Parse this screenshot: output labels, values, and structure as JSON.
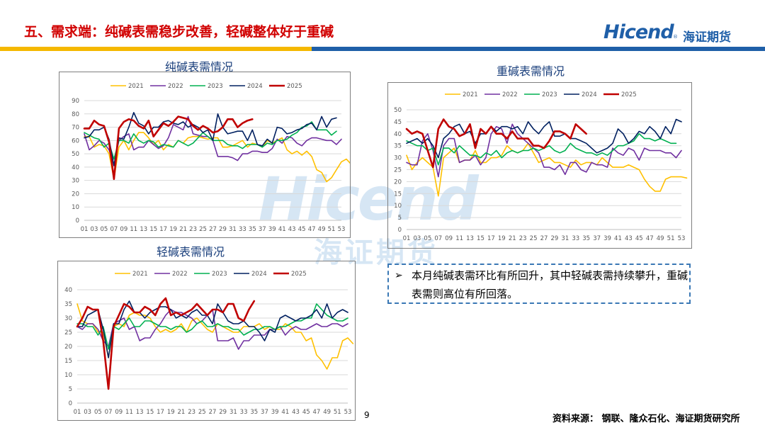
{
  "page": {
    "title": "五、需求端：纯碱表需稳步改善，轻碱整体好于重碱",
    "logo_en": "Hicend",
    "logo_cn": "海证期货",
    "logo_reg": "®",
    "watermark_en": "Hicend",
    "watermark_cn": "海证期货",
    "note_bullet": "➢",
    "note": "本月纯碱表需环比有所回升，其中轻碱表需持续攀升，重碱表需则高位有所回落。",
    "page_number": "9",
    "source": "资料来源：  钢联、隆众石化、海证期货研究所",
    "colors": {
      "title": "#d10000",
      "brand": "#1f5fa8",
      "chart_title": "#1a3f7c"
    }
  },
  "chart_data": [
    {
      "type": "line",
      "title": "纯碱表需情况",
      "ylim": [
        0,
        90
      ],
      "yticks": [
        0,
        10,
        20,
        30,
        40,
        50,
        60,
        70,
        80,
        90
      ],
      "xticks": [
        "01",
        "03",
        "05",
        "07",
        "09",
        "11",
        "13",
        "15",
        "17",
        "19",
        "21",
        "23",
        "25",
        "27",
        "29",
        "31",
        "33",
        "35",
        "37",
        "39",
        "41",
        "43",
        "45",
        "47",
        "49",
        "51",
        "53"
      ],
      "xrange": [
        1,
        53
      ],
      "legend": "top",
      "grid": true,
      "series": [
        {
          "name": "2021",
          "color": "#ffc000",
          "width": 1.6,
          "values": [
            63,
            63,
            55,
            57,
            56,
            50,
            31,
            55,
            60,
            53,
            60,
            66,
            66,
            62,
            57,
            60,
            53,
            57,
            55,
            60,
            58,
            62,
            63,
            63,
            62,
            61,
            62,
            62,
            55,
            55,
            56,
            58,
            60,
            55,
            58,
            57,
            55,
            60,
            58,
            60,
            62,
            53,
            50,
            52,
            49,
            52,
            48,
            38,
            36,
            29,
            32,
            38,
            44,
            46,
            42
          ]
        },
        {
          "name": "2022",
          "color": "#7030a0",
          "width": 1.6,
          "values": [
            65,
            53,
            56,
            60,
            58,
            53,
            42,
            60,
            63,
            65,
            53,
            55,
            55,
            60,
            57,
            54,
            56,
            62,
            72,
            70,
            68,
            78,
            65,
            64,
            63,
            63,
            60,
            48,
            48,
            48,
            47,
            45,
            50,
            50,
            52,
            52,
            51,
            51,
            54,
            61,
            58,
            63,
            62,
            58,
            56,
            60,
            62,
            62,
            61,
            60,
            60,
            57,
            61
          ]
        },
        {
          "name": "2023",
          "color": "#00b050",
          "width": 1.6,
          "values": [
            66,
            64,
            62,
            61,
            55,
            58,
            46,
            60,
            60,
            58,
            65,
            60,
            58,
            60,
            59,
            55,
            57,
            56,
            55,
            60,
            58,
            56,
            58,
            62,
            66,
            63,
            60,
            60,
            60,
            57,
            56,
            56,
            54,
            57,
            57,
            57,
            55,
            58,
            57,
            60,
            60,
            61,
            64,
            66,
            70,
            71,
            74,
            68,
            68,
            68,
            64,
            67
          ]
        },
        {
          "name": "2024",
          "color": "#002060",
          "width": 1.6,
          "values": [
            62,
            63,
            68,
            68,
            70,
            61,
            41,
            62,
            61,
            70,
            81,
            73,
            71,
            65,
            70,
            70,
            74,
            75,
            73,
            72,
            74,
            70,
            72,
            70,
            66,
            68,
            60,
            80,
            70,
            65,
            66,
            67,
            67,
            60,
            68,
            57,
            56,
            61,
            58,
            70,
            69,
            65,
            66,
            68,
            69,
            72,
            73,
            68,
            78,
            70,
            76,
            77
          ]
        },
        {
          "name": "2025",
          "color": "#c00000",
          "width": 2.6,
          "values": [
            69,
            69,
            75,
            72,
            71,
            59,
            31,
            69,
            74,
            76,
            75,
            71,
            69,
            75,
            63,
            68,
            73,
            71,
            74,
            78,
            77,
            76,
            71,
            68,
            71,
            69,
            66,
            67,
            70,
            76,
            76,
            70,
            73,
            75,
            76
          ]
        }
      ]
    },
    {
      "type": "line",
      "title": "重碱表需情况",
      "ylim": [
        0,
        50
      ],
      "yticks": [
        0,
        5,
        10,
        15,
        20,
        25,
        30,
        35,
        40,
        45,
        50
      ],
      "xticks": [
        "01",
        "03",
        "05",
        "07",
        "09",
        "11",
        "13",
        "15",
        "17",
        "19",
        "21",
        "23",
        "25",
        "27",
        "29",
        "31",
        "33",
        "35",
        "37",
        "39",
        "41",
        "43",
        "45",
        "47",
        "49",
        "51",
        "53"
      ],
      "xrange": [
        1,
        53
      ],
      "legend": "top",
      "grid": true,
      "series": [
        {
          "name": "2021",
          "color": "#ffc000",
          "width": 1.6,
          "values": [
            31,
            25,
            28,
            30,
            28,
            26,
            14,
            30,
            32,
            34,
            28,
            29,
            29,
            33,
            28,
            28,
            30,
            30,
            31,
            35,
            33,
            32,
            33,
            36,
            32,
            28,
            29,
            30,
            28,
            28,
            27,
            26,
            29,
            27,
            28,
            28,
            27,
            30,
            28,
            26,
            26,
            26,
            27,
            26,
            25,
            21,
            18,
            16,
            16,
            21,
            22,
            22,
            22,
            21.5
          ]
        },
        {
          "name": "2022",
          "color": "#7030a0",
          "width": 1.6,
          "values": [
            28,
            27,
            27,
            37,
            40,
            33,
            22,
            35,
            38,
            38,
            28,
            29,
            29,
            31,
            27,
            30,
            40,
            43,
            42,
            36,
            44,
            40,
            38,
            36,
            34,
            32,
            26,
            26,
            25,
            27,
            23,
            28,
            28,
            25,
            24,
            28,
            27,
            27,
            26,
            34,
            32,
            31,
            34,
            33,
            29,
            34,
            33,
            33,
            33,
            32,
            32,
            30,
            33
          ]
        },
        {
          "name": "2023",
          "color": "#00b050",
          "width": 1.6,
          "values": [
            37,
            36,
            35,
            35,
            33,
            34,
            27,
            34,
            34,
            32,
            35,
            33,
            31,
            31,
            30,
            32,
            31,
            33,
            30,
            32,
            33,
            32,
            33,
            33,
            34,
            33,
            34,
            35,
            33,
            32,
            33,
            36,
            34,
            33,
            32,
            32,
            31,
            32,
            31,
            33,
            35,
            35,
            36,
            37,
            40,
            38,
            38,
            37,
            38,
            37,
            36,
            36
          ]
        },
        {
          "name": "2024",
          "color": "#002060",
          "width": 1.6,
          "values": [
            36,
            37,
            38,
            36,
            38,
            35,
            30,
            38,
            40,
            43,
            44,
            40,
            41,
            36,
            40,
            40,
            43,
            41,
            43,
            43,
            42,
            43,
            40,
            45,
            42,
            40,
            43,
            45,
            39,
            39,
            40,
            38,
            38,
            37,
            36,
            34,
            32,
            33,
            34,
            36,
            42,
            40,
            36,
            38,
            41,
            40,
            43,
            41,
            38,
            43,
            40,
            46,
            45
          ]
        },
        {
          "name": "2025",
          "color": "#c00000",
          "width": 2.6,
          "values": [
            42,
            40,
            41,
            40,
            33,
            26,
            42,
            46,
            43,
            42,
            39,
            40,
            44,
            34,
            42,
            40,
            43,
            40,
            40,
            38,
            41,
            38,
            38,
            38,
            35,
            35,
            34,
            37,
            41,
            41,
            40,
            38,
            44,
            42,
            40
          ]
        }
      ]
    },
    {
      "type": "line",
      "title": "轻碱表需情况",
      "ylim": [
        0,
        40
      ],
      "yticks": [
        0,
        5,
        10,
        15,
        20,
        25,
        30,
        35,
        40
      ],
      "xticks": [
        "01",
        "03",
        "05",
        "07",
        "09",
        "11",
        "13",
        "15",
        "17",
        "19",
        "21",
        "23",
        "25",
        "27",
        "29",
        "31",
        "33",
        "35",
        "37",
        "39",
        "41",
        "43",
        "45",
        "47",
        "49",
        "51",
        "53"
      ],
      "xrange": [
        1,
        53
      ],
      "legend": "top",
      "grid": true,
      "series": [
        {
          "name": "2021",
          "color": "#ffc000",
          "width": 1.6,
          "values": [
            35,
            29,
            28,
            28,
            25,
            25,
            16,
            27,
            28,
            27,
            31,
            32,
            31,
            31,
            30,
            27,
            25,
            26,
            25,
            26,
            28,
            25,
            29,
            30,
            28,
            26,
            25,
            28,
            27,
            26,
            25,
            25,
            27,
            27,
            27,
            28,
            26,
            27,
            26,
            26,
            28,
            27,
            25,
            25,
            22,
            23,
            17,
            15,
            12,
            16,
            16,
            22,
            23,
            21
          ]
        },
        {
          "name": "2022",
          "color": "#7030a0",
          "width": 1.6,
          "values": [
            27,
            26,
            28,
            28,
            26,
            22,
            20,
            28,
            29,
            30,
            26,
            27,
            22,
            23,
            23,
            26,
            28,
            31,
            33,
            32,
            32,
            31,
            30,
            28,
            29,
            31,
            33,
            22,
            22,
            22,
            23,
            19,
            22,
            22,
            24,
            24,
            24,
            26,
            26,
            27,
            24,
            26,
            27,
            26,
            26,
            27,
            28,
            27,
            27,
            28,
            28,
            27,
            28
          ]
        },
        {
          "name": "2023",
          "color": "#00b050",
          "width": 1.6,
          "values": [
            28,
            28,
            27,
            27,
            24,
            27,
            19,
            27,
            26,
            28,
            30,
            27,
            27,
            29,
            29,
            28,
            27,
            27,
            26,
            27,
            27,
            25,
            26,
            28,
            29,
            27,
            27,
            28,
            27,
            27,
            26,
            26,
            24,
            25,
            26,
            26,
            27,
            27,
            26,
            27,
            27,
            28,
            29,
            29,
            30,
            30,
            35,
            33,
            31,
            30,
            29,
            29,
            30
          ]
        },
        {
          "name": "2024",
          "color": "#002060",
          "width": 1.6,
          "values": [
            27,
            27,
            31,
            32,
            33,
            26,
            16,
            28,
            28,
            33,
            36,
            32,
            32,
            30,
            32,
            33,
            34,
            34,
            33,
            30,
            31,
            30,
            32,
            33,
            31,
            31,
            28,
            35,
            32,
            29,
            28,
            28,
            29,
            27,
            27,
            25,
            22,
            26,
            25,
            30,
            31,
            30,
            29,
            30,
            30,
            31,
            33,
            30,
            35,
            30,
            32,
            33,
            32
          ]
        },
        {
          "name": "2025",
          "color": "#c00000",
          "width": 2.6,
          "values": [
            27,
            30,
            34,
            33,
            33,
            22,
            5,
            27,
            31,
            35,
            34,
            32,
            32,
            34,
            33,
            31,
            35,
            37,
            31,
            32,
            31,
            32,
            33,
            35,
            33,
            31,
            33,
            33,
            32,
            35,
            35,
            30,
            29,
            33,
            36
          ]
        }
      ]
    }
  ]
}
